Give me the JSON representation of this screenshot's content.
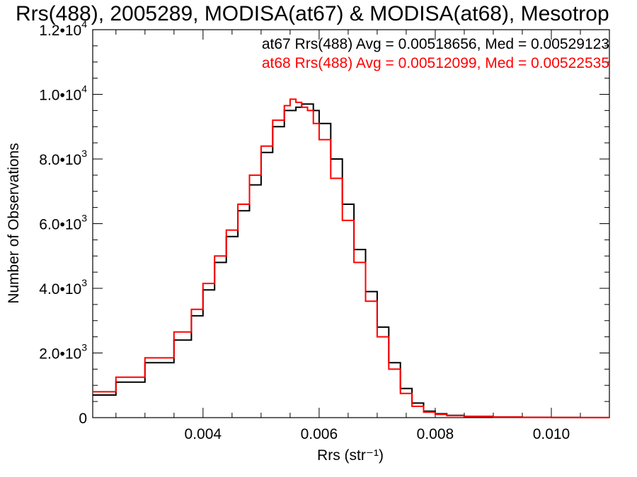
{
  "chart_data": {
    "type": "histogram-step",
    "title": "Rrs(488), 2005289, MODISA(at67) & MODISA(at68), Mesotrop",
    "xlabel": "Rrs (str⁻¹)",
    "ylabel": "Number of Observations",
    "xlim": [
      0.0021,
      0.011
    ],
    "ylim": [
      0,
      12000
    ],
    "x_ticks": [
      {
        "value": 0.004,
        "label": "0.004"
      },
      {
        "value": 0.006,
        "label": "0.006"
      },
      {
        "value": 0.008,
        "label": "0.008"
      },
      {
        "value": 0.01,
        "label": "0.010"
      }
    ],
    "y_ticks": [
      {
        "value": 0,
        "mant": "0",
        "exp": ""
      },
      {
        "value": 2000,
        "mant": "2.0•10",
        "exp": "3"
      },
      {
        "value": 4000,
        "mant": "4.0•10",
        "exp": "3"
      },
      {
        "value": 6000,
        "mant": "6.0•10",
        "exp": "3"
      },
      {
        "value": 8000,
        "mant": "8.0•10",
        "exp": "3"
      },
      {
        "value": 10000,
        "mant": "1.0•10",
        "exp": "4"
      },
      {
        "value": 12000,
        "mant": "1.2•10",
        "exp": "4"
      }
    ],
    "series": [
      {
        "name": "at67",
        "color": "#000000",
        "annotation": "at67 Rrs(488) Avg = 0.00518656, Med = 0.00529123",
        "x": [
          0.0021,
          0.0025,
          0.003,
          0.0035,
          0.0038,
          0.004,
          0.0042,
          0.0044,
          0.0046,
          0.0048,
          0.005,
          0.0052,
          0.0054,
          0.0056,
          0.0057,
          0.0058,
          0.0059,
          0.006,
          0.0062,
          0.0064,
          0.0066,
          0.0068,
          0.007,
          0.0072,
          0.0074,
          0.0076,
          0.0078,
          0.008,
          0.0082,
          0.0085,
          0.009,
          0.0095,
          0.01,
          0.0105,
          0.011
        ],
        "y": [
          700,
          1100,
          1700,
          2400,
          3150,
          3950,
          4800,
          5600,
          6400,
          7200,
          8200,
          9000,
          9500,
          9600,
          9700,
          9700,
          9500,
          9100,
          8000,
          6600,
          5200,
          3900,
          2800,
          1700,
          900,
          450,
          200,
          120,
          70,
          40,
          20,
          10,
          5,
          3,
          2
        ]
      },
      {
        "name": "at68",
        "color": "#ff0000",
        "annotation": "at68 Rrs(488) Avg = 0.00512099, Med = 0.00522535",
        "x": [
          0.0021,
          0.0025,
          0.003,
          0.0035,
          0.0038,
          0.004,
          0.0042,
          0.0044,
          0.0046,
          0.0048,
          0.005,
          0.0052,
          0.0054,
          0.0055,
          0.0056,
          0.0057,
          0.0058,
          0.0059,
          0.006,
          0.0062,
          0.0064,
          0.0066,
          0.0068,
          0.007,
          0.0072,
          0.0074,
          0.0076,
          0.0078,
          0.008,
          0.0082,
          0.0085,
          0.009,
          0.0095,
          0.01,
          0.0105,
          0.011
        ],
        "y": [
          800,
          1250,
          1850,
          2650,
          3350,
          4150,
          5000,
          5800,
          6600,
          7500,
          8400,
          9200,
          9650,
          9850,
          9750,
          9600,
          9500,
          9100,
          8600,
          7400,
          6100,
          4800,
          3600,
          2500,
          1500,
          750,
          350,
          170,
          100,
          60,
          35,
          15,
          8,
          4,
          2,
          1
        ]
      }
    ]
  }
}
